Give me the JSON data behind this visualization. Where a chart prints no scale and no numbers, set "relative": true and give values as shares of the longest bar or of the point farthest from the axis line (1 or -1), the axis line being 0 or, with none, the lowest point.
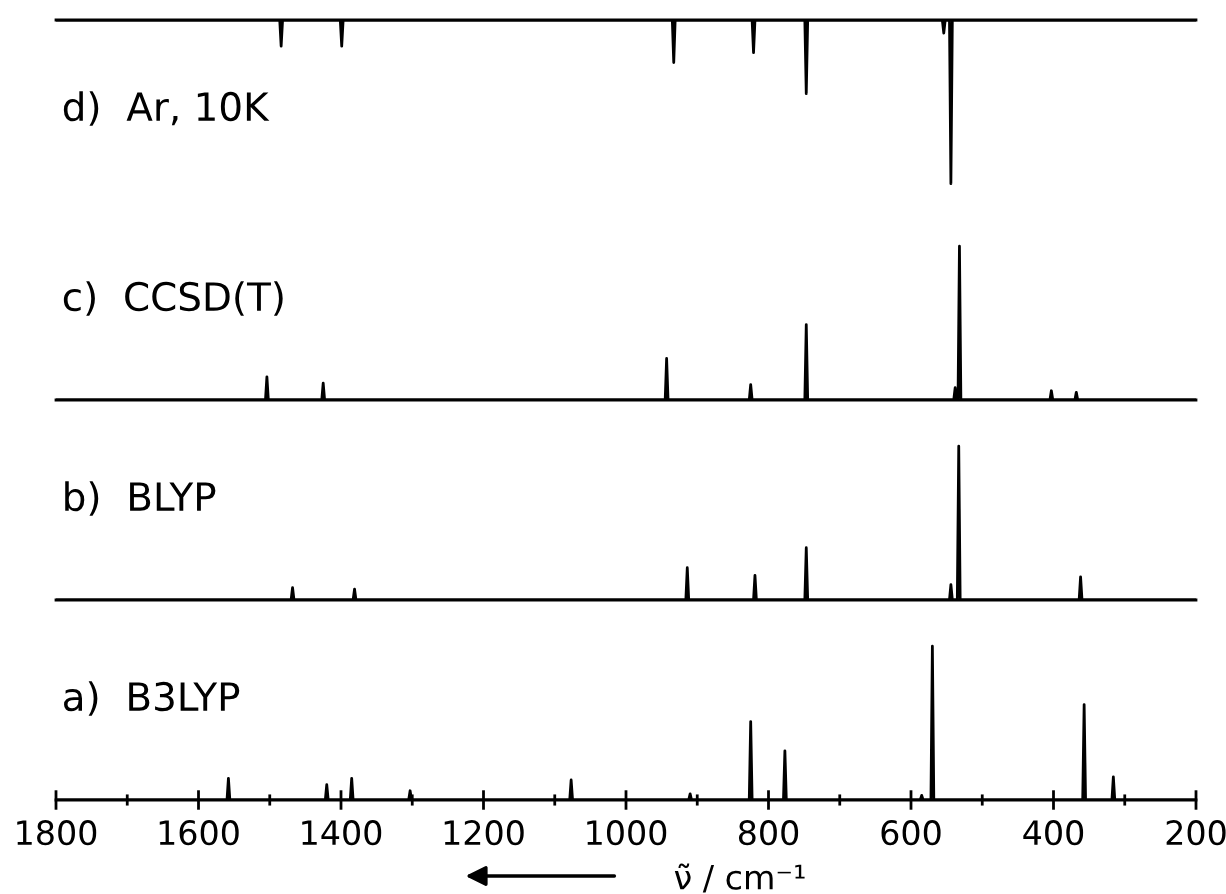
{
  "chart_data": [
    {
      "type": "line",
      "title": "d)  Ar, 10K",
      "relative": true,
      "xlim": [
        1800,
        200
      ],
      "tick_labels": false,
      "grid": false,
      "series": [
        {
          "color": "#000000",
          "x": [
            1800,
            1486,
            1484,
            1482,
            1401,
            1399,
            1397,
            935,
            933,
            931,
            823,
            821,
            819,
            749,
            747,
            745,
            556,
            554,
            552,
            546,
            544,
            542,
            200
          ],
          "values": [
            0,
            0,
            -0.16,
            0,
            0,
            -0.16,
            0,
            0,
            -0.26,
            0,
            0,
            -0.2,
            0,
            0,
            -0.45,
            0,
            0,
            -0.08,
            0,
            0,
            -1,
            0,
            0
          ]
        }
      ]
    },
    {
      "type": "line",
      "title": "c)  CCSD(T)",
      "relative": true,
      "xlim": [
        1800,
        200
      ],
      "tick_labels": false,
      "grid": false,
      "series": [
        {
          "color": "#000000",
          "x": [
            1800,
            1506,
            1504,
            1502,
            1427,
            1425,
            1423,
            945,
            943,
            941,
            827,
            825,
            823,
            749,
            747,
            745,
            540,
            538,
            536,
            534,
            532,
            530,
            405,
            403,
            401,
            370,
            368,
            366,
            200
          ],
          "values": [
            0,
            0,
            0.15,
            0,
            0,
            0.11,
            0,
            0,
            0.27,
            0,
            0,
            0.1,
            0,
            0,
            0.49,
            0,
            0,
            0.08,
            0,
            0,
            1,
            0,
            0,
            0.06,
            0,
            0,
            0.05,
            0,
            0
          ]
        }
      ]
    },
    {
      "type": "line",
      "title": "b)  BLYP",
      "relative": true,
      "xlim": [
        1800,
        200
      ],
      "tick_labels": false,
      "grid": false,
      "series": [
        {
          "color": "#000000",
          "x": [
            1800,
            1470,
            1468,
            1466,
            1383,
            1381,
            1379,
            916,
            914,
            912,
            821,
            819,
            817,
            749,
            747,
            745,
            546,
            544,
            542,
            535,
            533,
            531,
            364,
            362,
            360,
            200
          ],
          "values": [
            0,
            0,
            0.08,
            0,
            0,
            0.07,
            0,
            0,
            0.21,
            0,
            0,
            0.16,
            0,
            0,
            0.34,
            0,
            0,
            0.1,
            0,
            0,
            1,
            0,
            0,
            0.15,
            0,
            0
          ]
        }
      ]
    },
    {
      "type": "line",
      "title": "a)  B3LYP",
      "xlabel": "ν̃ / cm⁻¹",
      "relative": true,
      "xlim": [
        1800,
        200
      ],
      "tick_labels": "x",
      "grid": false,
      "xticks": [
        1800,
        {
          "value": 1700,
          "label": null
        },
        1600,
        {
          "value": 1500,
          "label": null
        },
        1400,
        {
          "value": 1300,
          "label": null
        },
        1200,
        {
          "value": 1100,
          "label": null
        },
        1000,
        {
          "value": 900,
          "label": null
        },
        800,
        {
          "value": 700,
          "label": null
        },
        600,
        {
          "value": 500,
          "label": null
        },
        400,
        {
          "value": 300,
          "label": null
        },
        200
      ],
      "series": [
        {
          "color": "#000000",
          "x": [
            1800,
            1560,
            1558,
            1556,
            1422,
            1420,
            1418,
            1387,
            1385,
            1383,
            1305,
            1303,
            1301,
            1079,
            1077,
            1075,
            912,
            910,
            908,
            827,
            825,
            823,
            779,
            777,
            775,
            587,
            585,
            583,
            572,
            570,
            568,
            359,
            357,
            355,
            318,
            316,
            314,
            200
          ],
          "values": [
            0,
            0,
            0.14,
            0,
            0,
            0.1,
            0,
            0,
            0.14,
            0,
            0,
            0.06,
            0,
            0,
            0.13,
            0,
            0,
            0.04,
            0,
            0,
            0.51,
            0,
            0,
            0.32,
            0,
            0,
            0.03,
            0,
            0,
            1,
            0,
            0,
            0.62,
            0,
            0,
            0.15,
            0,
            0
          ]
        }
      ]
    }
  ]
}
